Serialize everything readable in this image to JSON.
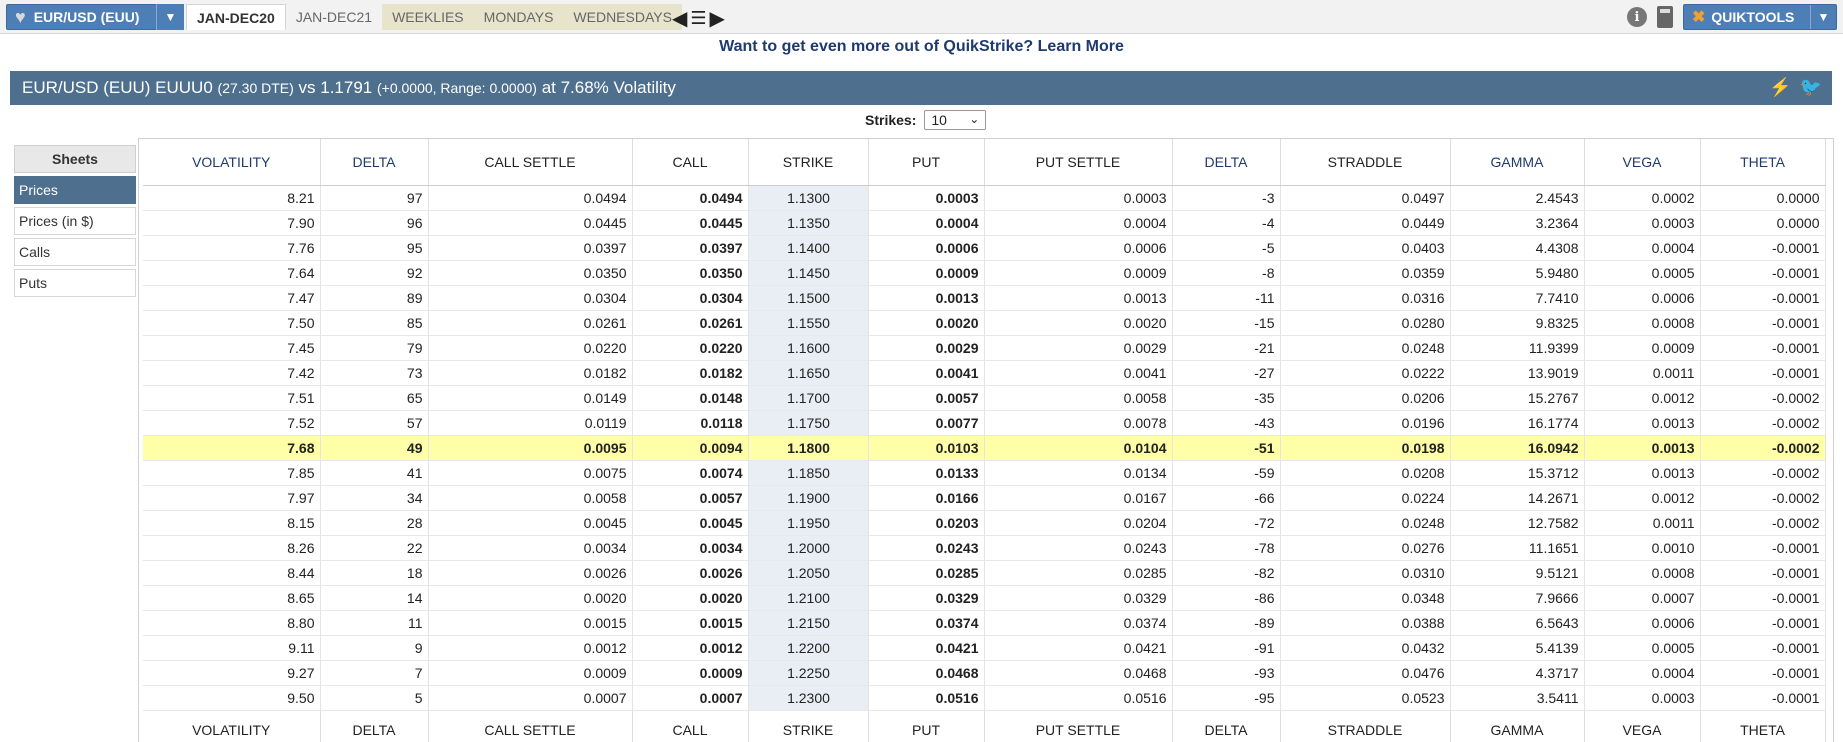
{
  "toolbar": {
    "product_label": "EUR/USD (EUU)",
    "tabs": [
      {
        "label": "JAN-DEC20",
        "style": "active"
      },
      {
        "label": "JAN-DEC21",
        "style": "plain"
      },
      {
        "label": "WEEKLIES",
        "style": "alt"
      },
      {
        "label": "MONDAYS",
        "style": "alt"
      },
      {
        "label": "WEDNESDAYS",
        "style": "alt"
      }
    ],
    "quikstrike_label": "QUIKTOOLS"
  },
  "promo": {
    "text": "Want to get even more out of QuikStrike?",
    "link": "Learn More"
  },
  "header": {
    "title": "EUR/USD (EUU) EUUU0",
    "dte": "(27.30 DTE)",
    "vs": "vs 1.1791",
    "change_range": "(+0.0000,  Range: 0.0000)",
    "vol": "at 7.68% Volatility"
  },
  "strikes": {
    "label": "Strikes:",
    "value": "10"
  },
  "sheets": {
    "title": "Sheets",
    "items": [
      {
        "label": "Prices",
        "active": true
      },
      {
        "label": "Prices (in $)",
        "active": false
      },
      {
        "label": "Calls",
        "active": false
      },
      {
        "label": "Puts",
        "active": false
      }
    ]
  },
  "table": {
    "columns": [
      {
        "label": "VOLATILITY",
        "dark": false
      },
      {
        "label": "DELTA",
        "dark": false
      },
      {
        "label": "CALL SETTLE",
        "dark": true
      },
      {
        "label": "CALL",
        "dark": true
      },
      {
        "label": "STRIKE",
        "dark": true
      },
      {
        "label": "PUT",
        "dark": true
      },
      {
        "label": "PUT SETTLE",
        "dark": true
      },
      {
        "label": "DELTA",
        "dark": false
      },
      {
        "label": "STRADDLE",
        "dark": true
      },
      {
        "label": "GAMMA",
        "dark": false
      },
      {
        "label": "VEGA",
        "dark": false
      },
      {
        "label": "THETA",
        "dark": false
      }
    ],
    "atm_index": 10,
    "rows": [
      [
        "8.21",
        "97",
        "0.0494",
        "0.0494",
        "1.1300",
        "0.0003",
        "0.0003",
        "-3",
        "0.0497",
        "2.4543",
        "0.0002",
        "0.0000"
      ],
      [
        "7.90",
        "96",
        "0.0445",
        "0.0445",
        "1.1350",
        "0.0004",
        "0.0004",
        "-4",
        "0.0449",
        "3.2364",
        "0.0003",
        "0.0000"
      ],
      [
        "7.76",
        "95",
        "0.0397",
        "0.0397",
        "1.1400",
        "0.0006",
        "0.0006",
        "-5",
        "0.0403",
        "4.4308",
        "0.0004",
        "-0.0001"
      ],
      [
        "7.64",
        "92",
        "0.0350",
        "0.0350",
        "1.1450",
        "0.0009",
        "0.0009",
        "-8",
        "0.0359",
        "5.9480",
        "0.0005",
        "-0.0001"
      ],
      [
        "7.47",
        "89",
        "0.0304",
        "0.0304",
        "1.1500",
        "0.0013",
        "0.0013",
        "-11",
        "0.0316",
        "7.7410",
        "0.0006",
        "-0.0001"
      ],
      [
        "7.50",
        "85",
        "0.0261",
        "0.0261",
        "1.1550",
        "0.0020",
        "0.0020",
        "-15",
        "0.0280",
        "9.8325",
        "0.0008",
        "-0.0001"
      ],
      [
        "7.45",
        "79",
        "0.0220",
        "0.0220",
        "1.1600",
        "0.0029",
        "0.0029",
        "-21",
        "0.0248",
        "11.9399",
        "0.0009",
        "-0.0001"
      ],
      [
        "7.42",
        "73",
        "0.0182",
        "0.0182",
        "1.1650",
        "0.0041",
        "0.0041",
        "-27",
        "0.0222",
        "13.9019",
        "0.0011",
        "-0.0001"
      ],
      [
        "7.51",
        "65",
        "0.0149",
        "0.0148",
        "1.1700",
        "0.0057",
        "0.0058",
        "-35",
        "0.0206",
        "15.2767",
        "0.0012",
        "-0.0002"
      ],
      [
        "7.52",
        "57",
        "0.0119",
        "0.0118",
        "1.1750",
        "0.0077",
        "0.0078",
        "-43",
        "0.0196",
        "16.1774",
        "0.0013",
        "-0.0002"
      ],
      [
        "7.68",
        "49",
        "0.0095",
        "0.0094",
        "1.1800",
        "0.0103",
        "0.0104",
        "-51",
        "0.0198",
        "16.0942",
        "0.0013",
        "-0.0002"
      ],
      [
        "7.85",
        "41",
        "0.0075",
        "0.0074",
        "1.1850",
        "0.0133",
        "0.0134",
        "-59",
        "0.0208",
        "15.3712",
        "0.0013",
        "-0.0002"
      ],
      [
        "7.97",
        "34",
        "0.0058",
        "0.0057",
        "1.1900",
        "0.0166",
        "0.0167",
        "-66",
        "0.0224",
        "14.2671",
        "0.0012",
        "-0.0002"
      ],
      [
        "8.15",
        "28",
        "0.0045",
        "0.0045",
        "1.1950",
        "0.0203",
        "0.0204",
        "-72",
        "0.0248",
        "12.7582",
        "0.0011",
        "-0.0002"
      ],
      [
        "8.26",
        "22",
        "0.0034",
        "0.0034",
        "1.2000",
        "0.0243",
        "0.0243",
        "-78",
        "0.0276",
        "11.1651",
        "0.0010",
        "-0.0001"
      ],
      [
        "8.44",
        "18",
        "0.0026",
        "0.0026",
        "1.2050",
        "0.0285",
        "0.0285",
        "-82",
        "0.0310",
        "9.5121",
        "0.0008",
        "-0.0001"
      ],
      [
        "8.65",
        "14",
        "0.0020",
        "0.0020",
        "1.2100",
        "0.0329",
        "0.0329",
        "-86",
        "0.0348",
        "7.9666",
        "0.0007",
        "-0.0001"
      ],
      [
        "8.80",
        "11",
        "0.0015",
        "0.0015",
        "1.2150",
        "0.0374",
        "0.0374",
        "-89",
        "0.0388",
        "6.5643",
        "0.0006",
        "-0.0001"
      ],
      [
        "9.11",
        "9",
        "0.0012",
        "0.0012",
        "1.2200",
        "0.0421",
        "0.0421",
        "-91",
        "0.0432",
        "5.4139",
        "0.0005",
        "-0.0001"
      ],
      [
        "9.27",
        "7",
        "0.0009",
        "0.0009",
        "1.2250",
        "0.0468",
        "0.0468",
        "-93",
        "0.0476",
        "4.3717",
        "0.0004",
        "-0.0001"
      ],
      [
        "9.50",
        "5",
        "0.0007",
        "0.0007",
        "1.2300",
        "0.0516",
        "0.0516",
        "-95",
        "0.0523",
        "3.5411",
        "0.0003",
        "-0.0001"
      ]
    ]
  }
}
